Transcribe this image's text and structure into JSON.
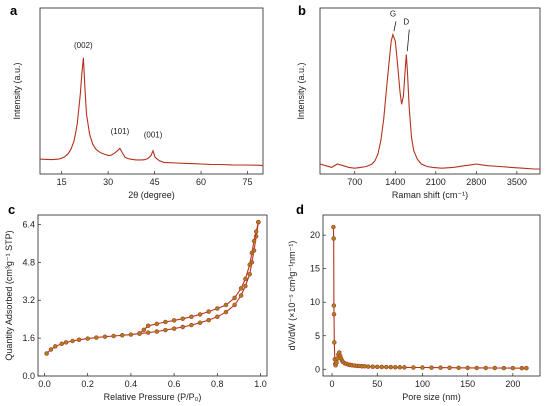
{
  "panels": {
    "a": "a",
    "b": "b",
    "c": "c",
    "d": "d"
  },
  "colors": {
    "line": "#b5321e",
    "marker_face": "#9a8a1c",
    "marker_edge": "#c0392b",
    "axis": "#222222"
  },
  "chart_data": [
    {
      "panel": "a",
      "type": "line",
      "xlabel": "2θ (degree)",
      "ylabel": "Intensity (a.u.)",
      "xlim": [
        8,
        80
      ],
      "ylim": [
        0,
        1
      ],
      "xticks": [
        15,
        30,
        45,
        60,
        75
      ],
      "yticks": [],
      "series": [
        {
          "x": [
            8,
            10,
            12,
            14,
            15,
            16,
            17,
            18,
            19,
            20,
            21,
            21.5,
            22,
            22.5,
            23,
            24,
            25,
            26,
            27,
            28,
            29,
            30,
            31,
            32,
            33,
            33.8,
            34.5,
            35.5,
            37,
            39,
            41,
            42,
            43,
            43.8,
            44.5,
            45.2,
            46.5,
            48,
            50,
            52,
            55,
            58,
            60,
            63,
            66,
            70,
            74,
            78,
            80
          ],
          "y": [
            0.09,
            0.088,
            0.087,
            0.09,
            0.095,
            0.105,
            0.12,
            0.15,
            0.2,
            0.3,
            0.48,
            0.6,
            0.7,
            0.52,
            0.36,
            0.24,
            0.18,
            0.15,
            0.135,
            0.125,
            0.118,
            0.112,
            0.113,
            0.125,
            0.14,
            0.155,
            0.13,
            0.1,
            0.09,
            0.085,
            0.085,
            0.087,
            0.095,
            0.11,
            0.14,
            0.1,
            0.08,
            0.07,
            0.068,
            0.066,
            0.064,
            0.062,
            0.06,
            0.058,
            0.057,
            0.055,
            0.054,
            0.053,
            0.052
          ]
        }
      ],
      "annotations": [
        {
          "text": "(002)",
          "x": 22,
          "y": 0.76
        },
        {
          "text": "(101)",
          "x": 33.8,
          "y": 0.24
        },
        {
          "text": "(001)",
          "x": 44.5,
          "y": 0.22
        }
      ]
    },
    {
      "panel": "b",
      "type": "line",
      "xlabel": "Raman shift (cm⁻¹)",
      "ylabel": "Intensity (a.u.)",
      "xlim": [
        100,
        3900
      ],
      "ylim": [
        0,
        1
      ],
      "xticks": [
        700,
        1400,
        2100,
        2800,
        3500
      ],
      "yticks": [],
      "series": [
        {
          "x": [
            100,
            200,
            300,
            400,
            500,
            600,
            700,
            800,
            900,
            1000,
            1050,
            1100,
            1150,
            1200,
            1250,
            1300,
            1330,
            1360,
            1400,
            1440,
            1480,
            1510,
            1540,
            1570,
            1590,
            1610,
            1640,
            1680,
            1720,
            1780,
            1850,
            1950,
            2050,
            2200,
            2400,
            2600,
            2700,
            2800,
            2900,
            3000,
            3200,
            3400,
            3600,
            3800,
            3900
          ],
          "y": [
            0.06,
            0.05,
            0.04,
            0.06,
            0.05,
            0.04,
            0.035,
            0.04,
            0.045,
            0.06,
            0.08,
            0.12,
            0.2,
            0.33,
            0.52,
            0.7,
            0.8,
            0.84,
            0.8,
            0.66,
            0.5,
            0.42,
            0.47,
            0.62,
            0.72,
            0.62,
            0.4,
            0.22,
            0.14,
            0.09,
            0.06,
            0.045,
            0.04,
            0.035,
            0.04,
            0.05,
            0.055,
            0.06,
            0.055,
            0.05,
            0.045,
            0.04,
            0.035,
            0.03,
            0.03
          ]
        }
      ],
      "annotations": [
        {
          "text": "G",
          "x": 1360,
          "y": 0.95
        },
        {
          "text": "D",
          "x": 1590,
          "y": 0.9
        }
      ]
    },
    {
      "panel": "c",
      "type": "line",
      "xlabel": "Relative Pressure (P/P₀)",
      "ylabel": "Quantity Adsorbed (cm³g⁻¹ STP)",
      "xlim": [
        -0.03,
        1.03
      ],
      "ylim": [
        0,
        6.8
      ],
      "xticks": [
        0.0,
        0.2,
        0.4,
        0.6,
        0.8,
        1.0
      ],
      "yticks": [
        0.0,
        1.6,
        3.2,
        4.8,
        6.4
      ],
      "series": [
        {
          "name": "",
          "x": [
            0.01,
            0.03,
            0.05,
            0.08,
            0.1,
            0.13,
            0.16,
            0.2,
            0.24,
            0.28,
            0.32,
            0.36,
            0.4,
            0.44,
            0.48,
            0.52,
            0.56,
            0.6,
            0.64,
            0.68,
            0.72,
            0.76,
            0.8,
            0.84,
            0.88,
            0.91,
            0.93,
            0.95,
            0.96,
            0.97,
            0.98,
            0.99
          ],
          "y": [
            0.95,
            1.12,
            1.25,
            1.36,
            1.42,
            1.48,
            1.53,
            1.58,
            1.62,
            1.66,
            1.69,
            1.72,
            1.75,
            1.79,
            1.83,
            1.88,
            1.94,
            2.0,
            2.07,
            2.15,
            2.25,
            2.36,
            2.5,
            2.7,
            3.0,
            3.4,
            3.8,
            4.3,
            4.8,
            5.3,
            5.9,
            6.5
          ]
        },
        {
          "name": "",
          "x": [
            0.99,
            0.98,
            0.97,
            0.96,
            0.95,
            0.93,
            0.91,
            0.88,
            0.84,
            0.8,
            0.76,
            0.72,
            0.68,
            0.64,
            0.6,
            0.56,
            0.52,
            0.48,
            0.46,
            0.44
          ],
          "y": [
            6.5,
            6.1,
            5.7,
            5.2,
            4.7,
            4.1,
            3.7,
            3.3,
            3.0,
            2.85,
            2.72,
            2.6,
            2.5,
            2.42,
            2.35,
            2.28,
            2.2,
            2.12,
            1.95,
            1.8
          ]
        }
      ]
    },
    {
      "panel": "d",
      "type": "line",
      "xlabel": "Pore size (nm)",
      "ylabel": "dV/dW (×10⁻⁵ cm³g⁻¹nm⁻¹)",
      "xlim": [
        -10,
        230
      ],
      "ylim": [
        -1,
        23
      ],
      "xticks": [
        0,
        50,
        100,
        150,
        200
      ],
      "yticks": [
        0,
        5,
        10,
        15,
        20
      ],
      "series": [
        {
          "x": [
            1.5,
            1.8,
            2.0,
            2.2,
            2.5,
            3.0,
            3.5,
            4.0,
            5,
            6,
            7,
            8,
            9,
            10,
            11,
            12,
            14,
            16,
            18,
            20,
            22,
            25,
            28,
            30,
            33,
            36,
            40,
            45,
            50,
            55,
            60,
            65,
            70,
            75,
            80,
            90,
            100,
            110,
            120,
            130,
            140,
            150,
            160,
            170,
            180,
            190,
            200,
            210,
            215
          ],
          "y": [
            21.2,
            19.5,
            9.5,
            8.2,
            4.0,
            1.5,
            0.8,
            0.6,
            1.0,
            1.6,
            2.2,
            2.5,
            2.0,
            1.6,
            1.3,
            1.1,
            0.9,
            0.8,
            0.7,
            0.65,
            0.6,
            0.55,
            0.5,
            0.5,
            0.45,
            0.45,
            0.4,
            0.38,
            0.36,
            0.34,
            0.33,
            0.32,
            0.3,
            0.3,
            0.28,
            0.27,
            0.26,
            0.25,
            0.24,
            0.23,
            0.22,
            0.21,
            0.2,
            0.2,
            0.19,
            0.18,
            0.18,
            0.17,
            0.17
          ]
        }
      ]
    }
  ]
}
